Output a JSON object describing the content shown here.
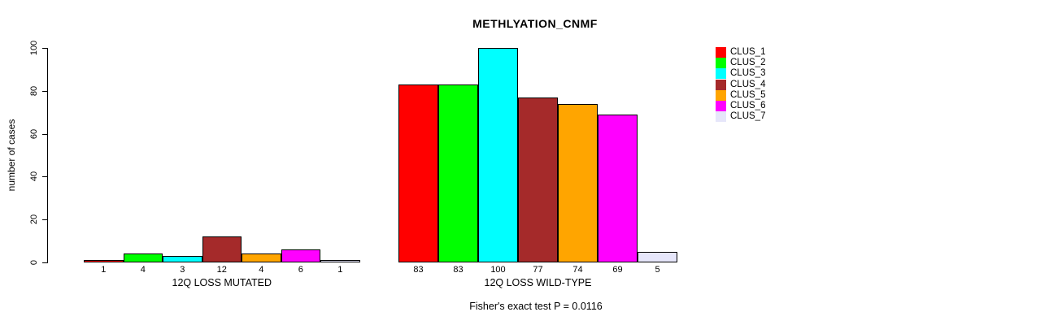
{
  "chart_data": {
    "type": "bar",
    "title": "METHLYATION_CNMF",
    "ylabel": "number of cases",
    "xlabel": "",
    "ylim": [
      0,
      100
    ],
    "yticks": [
      0,
      20,
      40,
      60,
      80,
      100
    ],
    "grid": false,
    "legend_position": "right",
    "series_names": [
      "CLUS_1",
      "CLUS_2",
      "CLUS_3",
      "CLUS_4",
      "CLUS_5",
      "CLUS_6",
      "CLUS_7"
    ],
    "colors": [
      "#FF0000",
      "#00FF00",
      "#00FFFF",
      "#A52A2A",
      "#FFA500",
      "#FF00FF",
      "#E6E6FA"
    ],
    "groups": [
      {
        "label": "12Q LOSS MUTATED",
        "values": [
          1,
          4,
          3,
          12,
          4,
          6,
          1
        ]
      },
      {
        "label": "12Q LOSS WILD-TYPE",
        "values": [
          83,
          83,
          100,
          77,
          74,
          69,
          5
        ]
      }
    ],
    "annotation": "Fisher's exact test P = 0.0116"
  }
}
